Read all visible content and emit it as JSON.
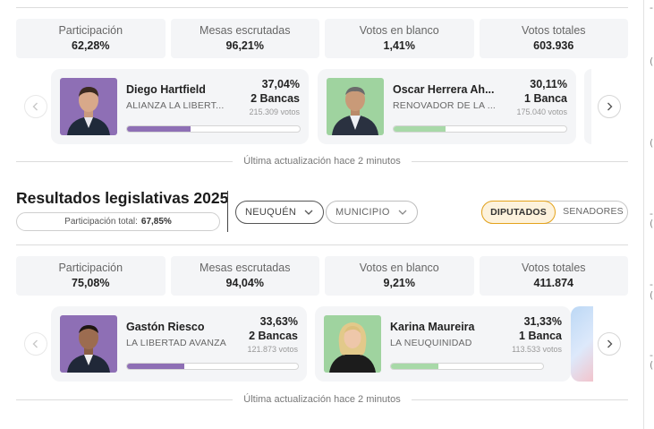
{
  "side_marks": [
    "-",
    "(",
    "(",
    "-",
    "(",
    "-",
    "(",
    "-",
    "("
  ],
  "top_section": {
    "stats": [
      {
        "label": "Participación",
        "value": "62,28%"
      },
      {
        "label": "Mesas escrutadas",
        "value": "96,21%"
      },
      {
        "label": "Votos en blanco",
        "value": "1,41%"
      },
      {
        "label": "Votos totales",
        "value": "603.936"
      }
    ],
    "candidates": [
      {
        "name": "Diego Hartfield",
        "party": "ALIANZA LA LIBERT...",
        "percent": "37,04%",
        "seats": "2 Bancas",
        "votes": "215.309 votos",
        "share": 0.3704,
        "color": "#8e6fb5",
        "photo_bg": "#8e6fb5"
      },
      {
        "name": "Oscar Herrera Ah...",
        "party": "RENOVADOR DE LA ...",
        "percent": "30,11%",
        "seats": "1 Banca",
        "votes": "175.040 votos",
        "share": 0.3011,
        "color": "#a8d9a8",
        "photo_bg": "#9fd39f"
      }
    ],
    "update_text": "Última actualización hace 2 minutos"
  },
  "legislative": {
    "title": "Resultados legislativas 2025",
    "total_label": "Participación total:",
    "total_value": "67,85%",
    "province_select": "NEUQUÉN",
    "municipality_select": "MUNICIPIO",
    "toggle": {
      "active": "DIPUTADOS",
      "inactive": "SENADORES"
    },
    "accent_color": "#e4a31c"
  },
  "bottom_section": {
    "stats": [
      {
        "label": "Participación",
        "value": "75,08%"
      },
      {
        "label": "Mesas escrutadas",
        "value": "94,04%"
      },
      {
        "label": "Votos en blanco",
        "value": "9,21%"
      },
      {
        "label": "Votos totales",
        "value": "411.874"
      }
    ],
    "candidates": [
      {
        "name": "Gastón Riesco",
        "party": "LA LIBERTAD AVANZA",
        "percent": "33,63%",
        "seats": "2 Bancas",
        "votes": "121.873 votos",
        "share": 0.3363,
        "color": "#8e6fb5",
        "photo_bg": "#8e6fb5"
      },
      {
        "name": "Karina Maureira",
        "party": "LA NEUQUINIDAD",
        "percent": "31,33%",
        "seats": "1 Banca",
        "votes": "113.533 votos",
        "share": 0.3133,
        "color": "#a8d9a8",
        "photo_bg": "#9fd39f"
      }
    ],
    "update_text": "Última actualización hace 2 minutos"
  }
}
